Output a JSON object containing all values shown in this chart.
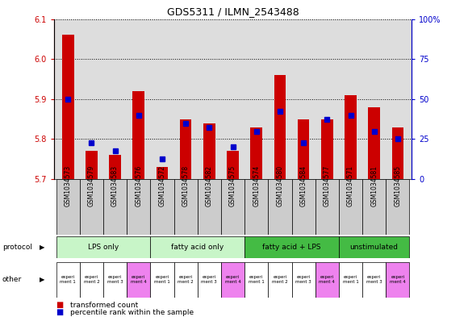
{
  "title": "GDS5311 / ILMN_2543488",
  "samples": [
    "GSM1034573",
    "GSM1034579",
    "GSM1034583",
    "GSM1034576",
    "GSM1034572",
    "GSM1034578",
    "GSM1034582",
    "GSM1034575",
    "GSM1034574",
    "GSM1034580",
    "GSM1034584",
    "GSM1034577",
    "GSM1034571",
    "GSM1034581",
    "GSM1034585"
  ],
  "red_values": [
    6.06,
    5.77,
    5.76,
    5.92,
    5.73,
    5.85,
    5.84,
    5.77,
    5.83,
    5.96,
    5.85,
    5.85,
    5.91,
    5.88,
    5.83
  ],
  "blue_values_left": [
    5.9,
    5.79,
    5.77,
    5.86,
    5.75,
    5.84,
    5.83,
    5.78,
    5.82,
    5.87,
    5.79,
    5.85,
    5.86,
    5.82,
    5.8
  ],
  "ylim_left": [
    5.7,
    6.1
  ],
  "ylim_right": [
    0,
    100
  ],
  "yticks_left": [
    5.7,
    5.8,
    5.9,
    6.0,
    6.1
  ],
  "yticks_right": [
    0,
    25,
    50,
    75,
    100
  ],
  "bar_baseline": 5.7,
  "protocol_groups": [
    {
      "label": "LPS only",
      "start": 0,
      "end": 4
    },
    {
      "label": "fatty acid only",
      "start": 4,
      "end": 8
    },
    {
      "label": "fatty acid + LPS",
      "start": 8,
      "end": 12
    },
    {
      "label": "unstimulated",
      "start": 12,
      "end": 15
    }
  ],
  "protocol_colors": [
    "#c8f5c8",
    "#c8f5c8",
    "#44bb44",
    "#44bb44"
  ],
  "other_labels": [
    "experi\nment 1",
    "experi\nment 2",
    "experi\nment 3",
    "experi\nment 4",
    "experi\nment 1",
    "experi\nment 2",
    "experi\nment 3",
    "experi\nment 4",
    "experi\nment 1",
    "experi\nment 2",
    "experi\nment 3",
    "experi\nment 4",
    "experi\nment 1",
    "experi\nment 3",
    "experi\nment 4"
  ],
  "other_colors": [
    "#ffffff",
    "#ffffff",
    "#ffffff",
    "#ee82ee",
    "#ffffff",
    "#ffffff",
    "#ffffff",
    "#ee82ee",
    "#ffffff",
    "#ffffff",
    "#ffffff",
    "#ee82ee",
    "#ffffff",
    "#ffffff",
    "#ee82ee"
  ],
  "red_color": "#cc0000",
  "blue_color": "#0000cc",
  "bar_width": 0.5,
  "blue_marker_size": 4,
  "grid_color": "#000000",
  "bg_color": "#dddddd",
  "xtick_bg": "#cccccc",
  "fig_width": 5.8,
  "fig_height": 3.93
}
